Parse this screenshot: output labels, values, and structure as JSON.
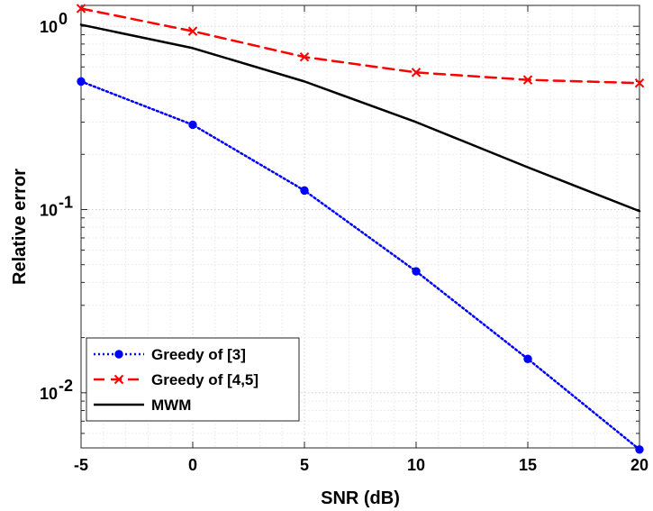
{
  "chart_data": {
    "type": "line",
    "title": "",
    "xlabel": "SNR (dB)",
    "ylabel": "Relative error",
    "x": [
      -5,
      0,
      5,
      10,
      15,
      20
    ],
    "xlim": [
      -5,
      20
    ],
    "ylim": [
      0.005,
      1.3
    ],
    "yscale": "log",
    "grid": true,
    "minor_grid": true,
    "legend_position": "bottom-left",
    "x_ticks": [
      "-5",
      "0",
      "5",
      "10",
      "15",
      "20"
    ],
    "y_ticks": [
      {
        "base": "10",
        "exp": "-2",
        "value": 0.01
      },
      {
        "base": "10",
        "exp": "-1",
        "value": 0.1
      },
      {
        "base": "10",
        "exp": "0",
        "value": 1
      }
    ],
    "series": [
      {
        "name": "Greedy of [3]",
        "color": "#0000ff",
        "style": "dotted",
        "marker": "circle",
        "values": [
          0.5,
          0.29,
          0.127,
          0.046,
          0.0153,
          0.0049
        ]
      },
      {
        "name": "Greedy of [4,5]",
        "color": "#ff0000",
        "style": "dashed",
        "marker": "x",
        "values": [
          1.25,
          0.94,
          0.68,
          0.56,
          0.51,
          0.49
        ]
      },
      {
        "name": "MWM",
        "color": "#000000",
        "style": "solid",
        "marker": "none",
        "values": [
          1.02,
          0.76,
          0.5,
          0.3,
          0.17,
          0.098
        ]
      }
    ]
  }
}
